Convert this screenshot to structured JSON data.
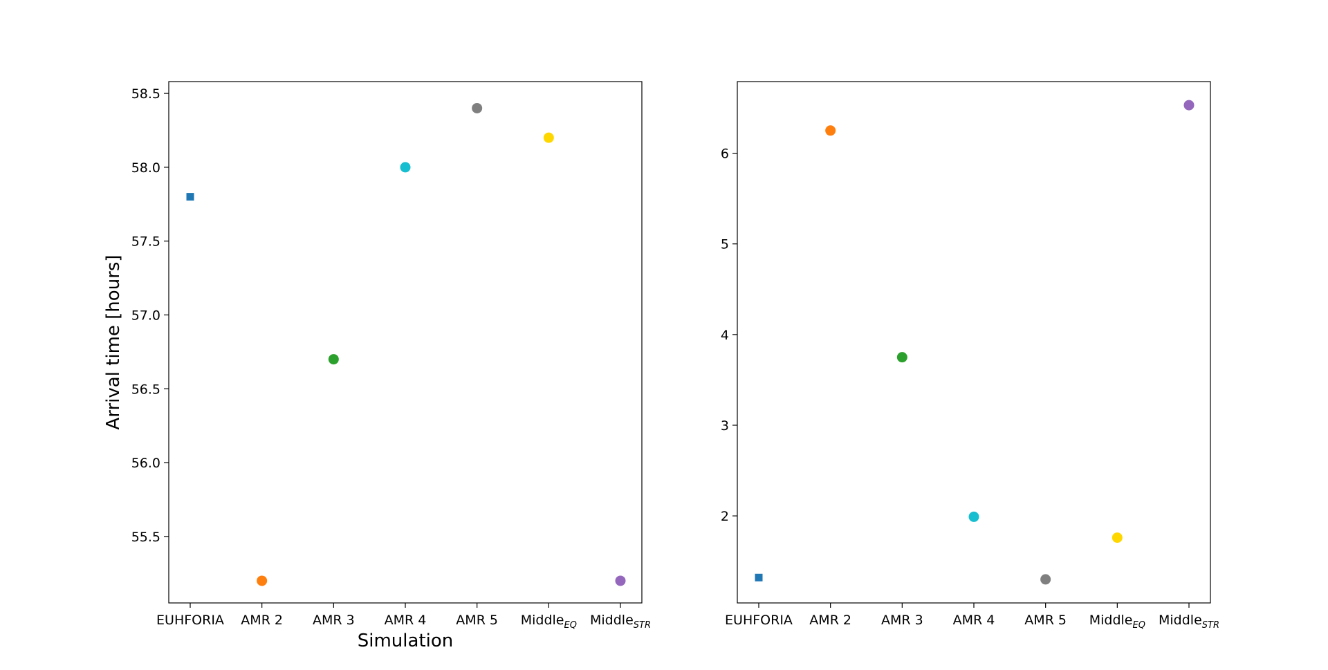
{
  "chart_data": [
    {
      "type": "scatter",
      "categories": [
        "EUHFORIA",
        "AMR 2",
        "AMR 3",
        "AMR 4",
        "AMR 5",
        "Middle",
        "Middle"
      ],
      "category_subscripts": [
        "",
        "",
        "",
        "",
        "",
        "EQ",
        "STR"
      ],
      "values": [
        57.8,
        55.2,
        56.7,
        58.0,
        58.4,
        58.2,
        55.2
      ],
      "colors": [
        "#1f77b4",
        "#ff7f0e",
        "#2ca02c",
        "#17becf",
        "#7f7f7f",
        "#ffd700",
        "#9467bd"
      ],
      "markers": [
        "square",
        "circle",
        "circle",
        "circle",
        "circle",
        "circle",
        "circle"
      ],
      "xlabel": "Simulation",
      "ylabel": "Arrival time [hours]",
      "ylim": [
        55.05,
        58.58
      ],
      "yticks": [
        "55.5",
        "56.0",
        "56.5",
        "57.0",
        "57.5",
        "58.0",
        "58.5"
      ],
      "grid": false
    },
    {
      "type": "scatter",
      "categories": [
        "EUHFORIA",
        "AMR 2",
        "AMR 3",
        "AMR 4",
        "AMR 5",
        "Middle",
        "Middle"
      ],
      "category_subscripts": [
        "",
        "",
        "",
        "",
        "",
        "EQ",
        "STR"
      ],
      "values": [
        1.32,
        6.25,
        3.75,
        1.99,
        1.3,
        1.76,
        6.53
      ],
      "colors": [
        "#1f77b4",
        "#ff7f0e",
        "#2ca02c",
        "#17becf",
        "#7f7f7f",
        "#ffd700",
        "#9467bd"
      ],
      "markers": [
        "square",
        "circle",
        "circle",
        "circle",
        "circle",
        "circle",
        "circle"
      ],
      "xlabel": "",
      "ylabel": "",
      "ylim": [
        1.04,
        6.79
      ],
      "yticks": [
        "2",
        "3",
        "4",
        "5",
        "6"
      ],
      "grid": false
    }
  ]
}
